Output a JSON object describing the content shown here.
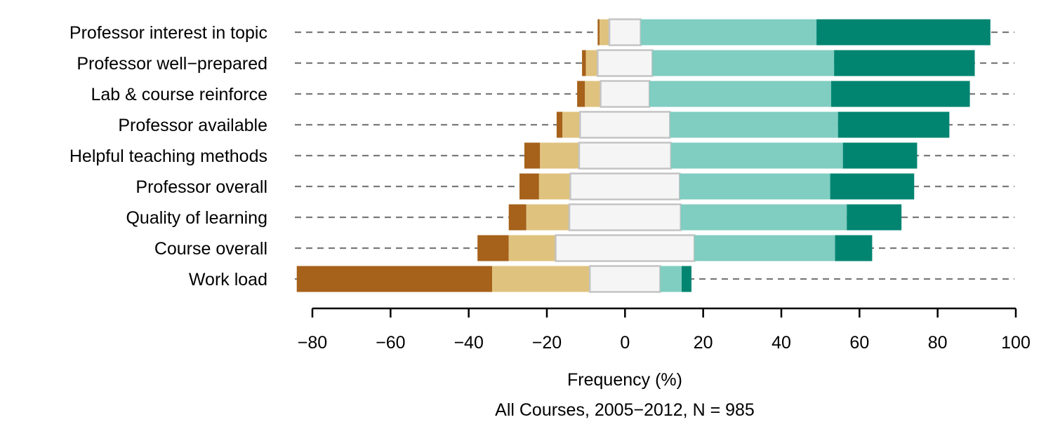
{
  "chart_data": {
    "type": "bar",
    "orientation": "horizontal",
    "stacked": "diverging",
    "categories": [
      "Professor interest in topic",
      "Professor well−prepared",
      "Lab & course reinforce",
      "Professor available",
      "Helpful teaching methods",
      "Professor overall",
      "Quality of learning",
      "Course overall",
      "Work load"
    ],
    "series": [
      {
        "color": "#a6611a",
        "values": [
          0.5,
          1,
          2,
          1.5,
          4,
          5,
          4.5,
          8,
          50
        ]
      },
      {
        "color": "#dfc27d",
        "values": [
          2.5,
          3,
          4,
          4.5,
          10,
          8,
          11,
          12,
          25
        ]
      },
      {
        "color": "#f5f5f5",
        "values": [
          8,
          14,
          12.5,
          23,
          23.5,
          28,
          28.5,
          35.5,
          18
        ]
      },
      {
        "color": "#80cdc1",
        "values": [
          45,
          46.5,
          46.5,
          43,
          44,
          38.5,
          42.5,
          36,
          5.5
        ]
      },
      {
        "color": "#018571",
        "values": [
          44.5,
          36,
          35.5,
          28.5,
          19,
          21.5,
          14,
          9.5,
          2.5
        ]
      }
    ],
    "neutral_series_index": 2,
    "xlim": [
      -80,
      100
    ],
    "xticks": [
      -80,
      -60,
      -40,
      -20,
      0,
      20,
      40,
      60,
      80,
      100
    ],
    "xtick_labels": [
      "−80",
      "−60",
      "−40",
      "−20",
      "0",
      "20",
      "40",
      "60",
      "80",
      "100"
    ],
    "xlabel": "Frequency (%)",
    "subtitle": "All Courses, 2005−2012, N = 985",
    "grid": "dashed guide line per category row"
  }
}
